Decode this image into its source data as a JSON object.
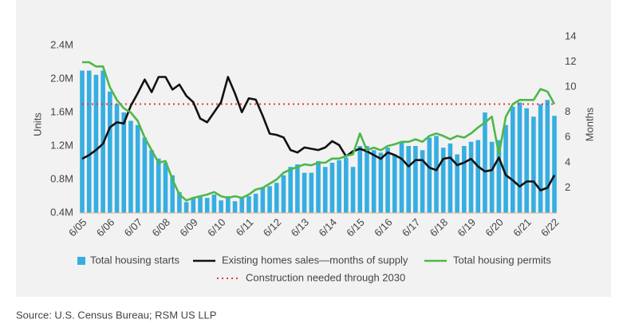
{
  "chart_data": {
    "type": "bar",
    "y_label": "Units",
    "y2_label": "Months",
    "source": "Source: U.S. Census Bureau; RSM US LLP",
    "categories": [
      "6/05",
      null,
      null,
      null,
      "6/06",
      null,
      null,
      null,
      "6/07",
      null,
      null,
      null,
      "6/08",
      null,
      null,
      null,
      "6/09",
      null,
      null,
      null,
      "6/10",
      null,
      null,
      null,
      "6/11",
      null,
      null,
      null,
      "6/12",
      null,
      null,
      null,
      "6/13",
      null,
      null,
      null,
      "6/14",
      null,
      null,
      null,
      "6/15",
      null,
      null,
      null,
      "6/16",
      null,
      null,
      null,
      "6/17",
      null,
      null,
      null,
      "6/18",
      null,
      null,
      null,
      "6/19",
      null,
      null,
      null,
      "6/20",
      null,
      null,
      null,
      "6/21",
      null,
      null,
      null,
      "6/22"
    ],
    "ylim": [
      0.4,
      2.505
    ],
    "yticks": [
      {
        "value": 0.4,
        "label": "0.4M"
      },
      {
        "value": 0.8,
        "label": "0.8M"
      },
      {
        "value": 1.2,
        "label": "1.2M"
      },
      {
        "value": 1.6,
        "label": "1.6M"
      },
      {
        "value": 2.0,
        "label": "2.0M"
      },
      {
        "value": 2.4,
        "label": "2.4M"
      }
    ],
    "y2lim": [
      0,
      14
    ],
    "y2ticks": [
      2,
      4,
      6,
      8,
      10,
      12,
      14
    ],
    "series": [
      {
        "name": "Total housing starts",
        "type": "bar",
        "color": "#36aee2",
        "values": [
          2.1,
          2.1,
          2.05,
          2.1,
          1.85,
          1.7,
          1.6,
          1.5,
          1.45,
          1.3,
          1.15,
          1.05,
          1.0,
          0.85,
          0.65,
          0.53,
          0.58,
          0.59,
          0.58,
          0.62,
          0.55,
          0.6,
          0.54,
          0.58,
          0.6,
          0.63,
          0.7,
          0.72,
          0.76,
          0.85,
          0.95,
          0.98,
          0.88,
          0.88,
          1.02,
          0.95,
          1.0,
          1.03,
          1.06,
          0.95,
          1.2,
          1.2,
          1.15,
          1.12,
          1.18,
          1.1,
          1.25,
          1.2,
          1.2,
          1.15,
          1.3,
          1.32,
          1.18,
          1.23,
          1.1,
          1.2,
          1.25,
          1.27,
          1.6,
          1.25,
          1.27,
          1.45,
          1.67,
          1.72,
          1.65,
          1.55,
          1.7,
          1.75,
          1.56
        ]
      },
      {
        "name": "Existing homes sales—months of supply",
        "type": "line",
        "axis": "y2",
        "color": "#111111",
        "values": [
          4.3,
          4.6,
          5.0,
          5.5,
          6.8,
          7.2,
          7.1,
          8.5,
          9.5,
          10.6,
          9.6,
          10.8,
          10.8,
          9.8,
          10.2,
          9.3,
          8.8,
          7.5,
          7.2,
          8.0,
          8.8,
          10.8,
          9.5,
          8.0,
          9.1,
          9.0,
          7.7,
          6.3,
          6.2,
          6.0,
          5.0,
          4.8,
          5.2,
          5.1,
          5.0,
          5.2,
          5.7,
          5.4,
          4.5,
          4.9,
          5.1,
          4.9,
          4.6,
          4.3,
          4.8,
          4.6,
          4.3,
          3.7,
          4.2,
          4.2,
          3.6,
          3.4,
          4.3,
          4.4,
          3.8,
          4.0,
          4.3,
          3.7,
          3.3,
          3.4,
          4.4,
          3.0,
          2.6,
          2.1,
          2.5,
          2.5,
          1.8,
          2.0,
          3.0
        ]
      },
      {
        "name": "Total housing permits",
        "type": "line",
        "color": "#4db848",
        "values": [
          2.2,
          2.2,
          2.15,
          2.15,
          1.9,
          1.75,
          1.65,
          1.6,
          1.5,
          1.3,
          1.15,
          1.0,
          1.02,
          0.8,
          0.62,
          0.55,
          0.58,
          0.6,
          0.62,
          0.65,
          0.6,
          0.58,
          0.6,
          0.58,
          0.62,
          0.68,
          0.7,
          0.75,
          0.8,
          0.88,
          0.92,
          0.95,
          0.98,
          0.97,
          1.0,
          1.0,
          1.05,
          1.05,
          1.08,
          1.1,
          1.35,
          1.15,
          1.18,
          1.15,
          1.2,
          1.22,
          1.25,
          1.25,
          1.28,
          1.25,
          1.32,
          1.35,
          1.32,
          1.28,
          1.32,
          1.3,
          1.35,
          1.42,
          1.48,
          1.55,
          1.1,
          1.55,
          1.7,
          1.75,
          1.75,
          1.75,
          1.88,
          1.85,
          1.7
        ]
      }
    ],
    "reference_lines": [
      {
        "name": "Construction needed through 2030",
        "value": 1.7,
        "color": "#e0393e"
      }
    ]
  }
}
